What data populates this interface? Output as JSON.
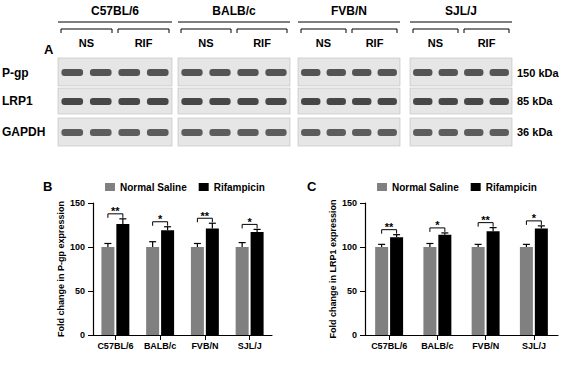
{
  "blot": {
    "label": "A",
    "strains": [
      "C57BL/6",
      "BALB/c",
      "FVB/N",
      "SJL/J"
    ],
    "treatments": [
      "NS",
      "RIF"
    ],
    "proteins": [
      {
        "name": "P-gp",
        "size": "150 kDa"
      },
      {
        "name": "LRP1",
        "size": "85 kDa"
      },
      {
        "name": "GAPDH",
        "size": "36 kDa"
      }
    ]
  },
  "chart_data": [
    {
      "type": "bar",
      "title": "B",
      "y_label": "Fold change in P-gp expression",
      "categories": [
        "C57BL/6",
        "BALB/c",
        "FVB/N",
        "SJL/J"
      ],
      "series": [
        {
          "name": "Normal Saline",
          "color": "#808080",
          "values": [
            100,
            100,
            100,
            100
          ],
          "errors": [
            4,
            6,
            4,
            5
          ]
        },
        {
          "name": "Rifampicin",
          "color": "#000000",
          "values": [
            126,
            119,
            121,
            117
          ],
          "errors": [
            6,
            4,
            6,
            3
          ]
        }
      ],
      "significance": [
        "**",
        "*",
        "**",
        "*"
      ],
      "ylim": [
        0,
        150
      ],
      "yticks": [
        0,
        50,
        100,
        150
      ],
      "legend": "top",
      "grid": false
    },
    {
      "type": "bar",
      "title": "C",
      "y_label": "Fold change in LRP1 expression",
      "categories": [
        "C57BL/6",
        "BALB/c",
        "FVB/N",
        "SJL/J"
      ],
      "series": [
        {
          "name": "Normal Saline",
          "color": "#808080",
          "values": [
            100,
            100,
            100,
            100
          ],
          "errors": [
            3,
            4,
            3,
            3
          ]
        },
        {
          "name": "Rifampicin",
          "color": "#000000",
          "values": [
            111,
            114,
            118,
            121
          ],
          "errors": [
            3,
            2,
            4,
            3
          ]
        }
      ],
      "significance": [
        "**",
        "*",
        "**",
        "*"
      ],
      "ylim": [
        0,
        150
      ],
      "yticks": [
        0,
        50,
        100,
        150
      ],
      "legend": "top",
      "grid": false
    }
  ]
}
